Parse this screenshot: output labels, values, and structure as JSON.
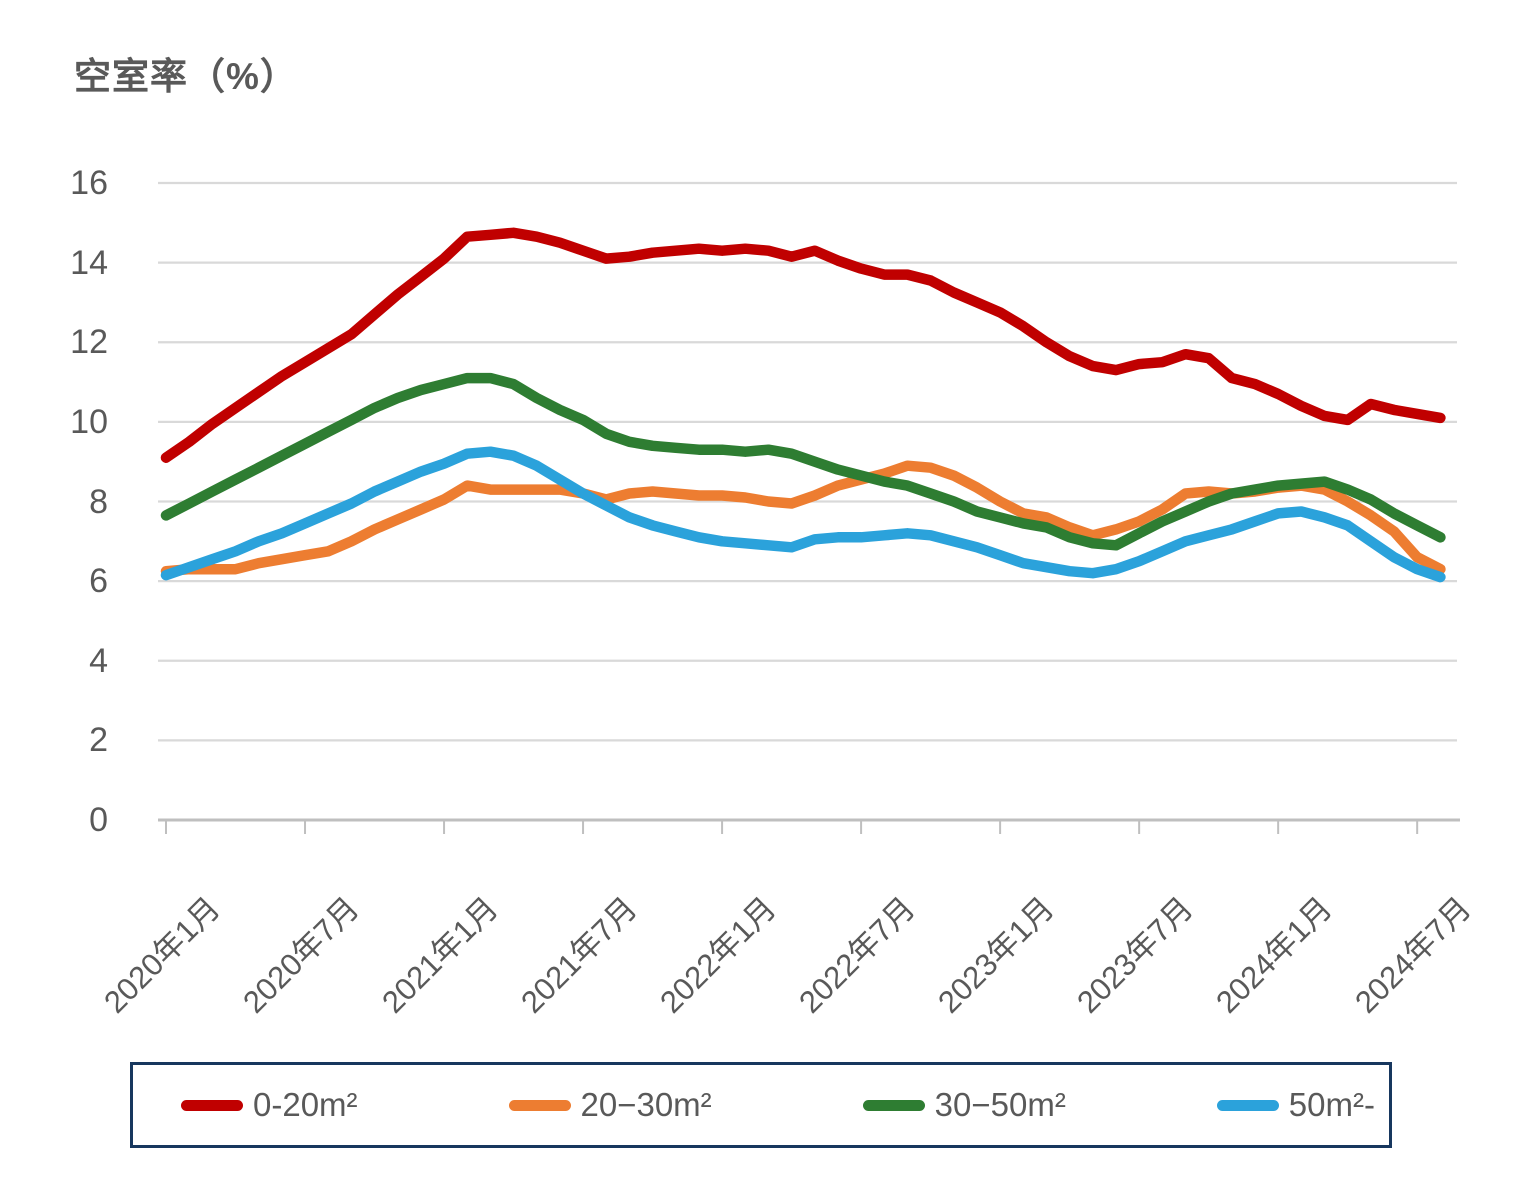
{
  "title": "空室率（%）",
  "colors": {
    "title_text": "#595959",
    "axis_text": "#595959",
    "gridline": "#D9D9D9",
    "axis_line": "#BFBFBF",
    "legend_border": "#17375E",
    "background": "#FFFFFF"
  },
  "chart_data": {
    "type": "line",
    "title": "空室率（%）",
    "ylabel": "空室率（%）",
    "xlabel": "",
    "ylim": [
      0,
      16
    ],
    "y_ticks": [
      0,
      2,
      4,
      6,
      8,
      10,
      12,
      14,
      16
    ],
    "grid": "horizontal",
    "legend_position": "bottom",
    "x_tick_every": 6,
    "x_tick_labels": [
      "2020年1月",
      "2020年7月",
      "2021年1月",
      "2021年7月",
      "2022年1月",
      "2022年7月",
      "2023年1月",
      "2023年7月",
      "2024年1月",
      "2024年7月"
    ],
    "categories": [
      "2020年1月",
      "2020年2月",
      "2020年3月",
      "2020年4月",
      "2020年5月",
      "2020年6月",
      "2020年7月",
      "2020年8月",
      "2020年9月",
      "2020年10月",
      "2020年11月",
      "2020年12月",
      "2021年1月",
      "2021年2月",
      "2021年3月",
      "2021年4月",
      "2021年5月",
      "2021年6月",
      "2021年7月",
      "2021年8月",
      "2021年9月",
      "2021年10月",
      "2021年11月",
      "2021年12月",
      "2022年1月",
      "2022年2月",
      "2022年3月",
      "2022年4月",
      "2022年5月",
      "2022年6月",
      "2022年7月",
      "2022年8月",
      "2022年9月",
      "2022年10月",
      "2022年11月",
      "2022年12月",
      "2023年1月",
      "2023年2月",
      "2023年3月",
      "2023年4月",
      "2023年5月",
      "2023年6月",
      "2023年7月",
      "2023年8月",
      "2023年9月",
      "2023年10月",
      "2023年11月",
      "2023年12月",
      "2024年1月",
      "2024年2月",
      "2024年3月",
      "2024年4月",
      "2024年5月",
      "2024年6月",
      "2024年7月",
      "2024年8月"
    ],
    "series": [
      {
        "name": "0-20m²",
        "color": "#C00000",
        "values": [
          9.1,
          9.5,
          9.95,
          10.35,
          10.75,
          11.15,
          11.5,
          11.85,
          12.2,
          12.7,
          13.2,
          13.65,
          14.1,
          14.65,
          14.7,
          14.75,
          14.65,
          14.5,
          14.3,
          14.1,
          14.15,
          14.25,
          14.3,
          14.35,
          14.3,
          14.35,
          14.3,
          14.15,
          14.3,
          14.05,
          13.85,
          13.7,
          13.7,
          13.55,
          13.25,
          13.0,
          12.75,
          12.4,
          12.0,
          11.65,
          11.4,
          11.3,
          11.45,
          11.5,
          11.7,
          11.6,
          11.1,
          10.95,
          10.7,
          10.4,
          10.15,
          10.05,
          10.45,
          10.3,
          10.2,
          10.1
        ]
      },
      {
        "name": "20−30m²",
        "color": "#ED7D31",
        "values": [
          6.25,
          6.3,
          6.3,
          6.3,
          6.45,
          6.55,
          6.65,
          6.75,
          7.0,
          7.3,
          7.55,
          7.8,
          8.05,
          8.4,
          8.3,
          8.3,
          8.3,
          8.3,
          8.2,
          8.05,
          8.2,
          8.25,
          8.2,
          8.15,
          8.15,
          8.1,
          8.0,
          7.95,
          8.15,
          8.4,
          8.55,
          8.7,
          8.9,
          8.85,
          8.65,
          8.35,
          8.0,
          7.7,
          7.6,
          7.35,
          7.15,
          7.3,
          7.5,
          7.8,
          8.2,
          8.25,
          8.2,
          8.25,
          8.35,
          8.4,
          8.3,
          8.0,
          7.65,
          7.25,
          6.6,
          6.3
        ]
      },
      {
        "name": "30−50m²",
        "color": "#2E7D32",
        "values": [
          7.65,
          7.95,
          8.25,
          8.55,
          8.85,
          9.15,
          9.45,
          9.75,
          10.05,
          10.35,
          10.6,
          10.8,
          10.95,
          11.1,
          11.1,
          10.95,
          10.6,
          10.3,
          10.05,
          9.7,
          9.5,
          9.4,
          9.35,
          9.3,
          9.3,
          9.25,
          9.3,
          9.2,
          9.0,
          8.8,
          8.65,
          8.5,
          8.4,
          8.2,
          8.0,
          7.75,
          7.6,
          7.45,
          7.35,
          7.1,
          6.95,
          6.9,
          7.2,
          7.5,
          7.75,
          8.0,
          8.2,
          8.3,
          8.4,
          8.45,
          8.5,
          8.3,
          8.05,
          7.7,
          7.4,
          7.1
        ]
      },
      {
        "name": "50m²-",
        "color": "#2BA2DB",
        "values": [
          6.15,
          6.35,
          6.55,
          6.75,
          7.0,
          7.2,
          7.45,
          7.7,
          7.95,
          8.25,
          8.5,
          8.75,
          8.95,
          9.2,
          9.25,
          9.15,
          8.9,
          8.55,
          8.2,
          7.9,
          7.6,
          7.4,
          7.25,
          7.1,
          7.0,
          6.95,
          6.9,
          6.85,
          7.05,
          7.1,
          7.1,
          7.15,
          7.2,
          7.15,
          7.0,
          6.85,
          6.65,
          6.45,
          6.35,
          6.25,
          6.2,
          6.3,
          6.5,
          6.75,
          7.0,
          7.15,
          7.3,
          7.5,
          7.7,
          7.75,
          7.6,
          7.4,
          7.0,
          6.6,
          6.3,
          6.1
        ]
      }
    ]
  }
}
